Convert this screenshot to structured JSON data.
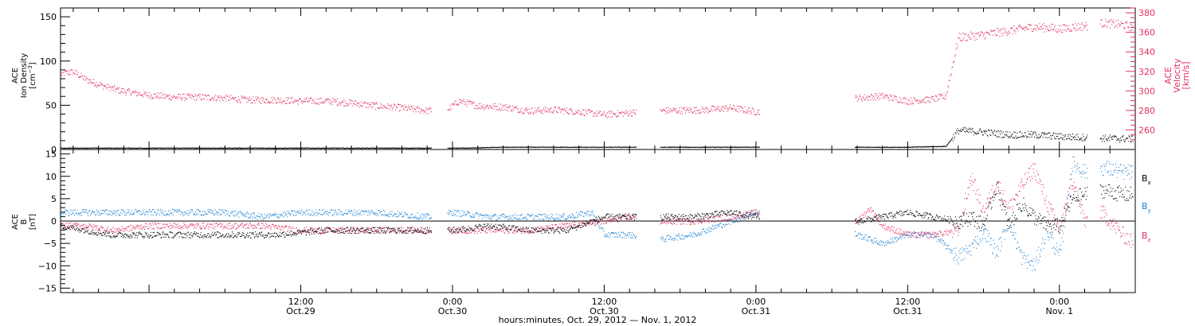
{
  "colors": {
    "density": "#000000",
    "velocity": "#e0325f",
    "bx": "#000000",
    "by": "#1f84d6",
    "bz": "#e0325f"
  },
  "xaxis": {
    "title": "hours:minutes, Oct. 29, 2012 — Nov. 1, 2012",
    "range_hours": [
      -7,
      78
    ],
    "ticks": [
      {
        "h": 12,
        "time": "12:00",
        "date": "Oct.29"
      },
      {
        "h": 24,
        "time": "0:00",
        "date": "Oct.30"
      },
      {
        "h": 36,
        "time": "12:00",
        "date": "Oct.30"
      },
      {
        "h": 48,
        "time": "0:00",
        "date": "Oct.31"
      },
      {
        "h": 60,
        "time": "12:00",
        "date": "Oct.31"
      },
      {
        "h": 72,
        "time": "0:00",
        "date": "Nov. 1"
      }
    ]
  },
  "chart_data": [
    {
      "type": "scatter",
      "title": "",
      "left_axis": {
        "label_lines": [
          "ACE",
          "Ion Density"
        ],
        "unit_base": "[cm",
        "unit_exp": "−3",
        "unit_close": "]",
        "ylim": [
          0,
          160
        ],
        "ticks": [
          "0",
          "50",
          "100",
          "150"
        ],
        "tick_values": [
          0,
          50,
          100,
          150
        ]
      },
      "right_axis": {
        "label_lines": [
          "ACE",
          "Velocity",
          "[km/s]"
        ],
        "ylim": [
          240,
          385
        ],
        "ticks": [
          "260",
          "280",
          "300",
          "320",
          "340",
          "360",
          "380"
        ],
        "tick_values": [
          260,
          280,
          300,
          320,
          340,
          360,
          380
        ]
      },
      "series": [
        {
          "name": "Ion Density",
          "axis": "left",
          "x_hours": [
            -7,
            -3,
            0,
            4,
            8,
            12,
            16,
            20,
            22.5,
            25,
            28,
            32,
            36,
            38,
            40.5,
            44,
            47.5,
            52,
            56,
            60,
            63,
            64,
            66,
            68,
            70,
            72,
            74,
            76,
            78
          ],
          "values": [
            2,
            2,
            2,
            2,
            2,
            2,
            2,
            2,
            2,
            2,
            3,
            3,
            3,
            3,
            3,
            3,
            3,
            3,
            3,
            3,
            4,
            22,
            20,
            17,
            17,
            15,
            14,
            13,
            12
          ],
          "gaps_hours": [
            [
              22.3,
              23.6
            ],
            [
              38.5,
              40.4
            ],
            [
              48.3,
              55.8
            ],
            [
              74.2,
              75.2
            ],
            [
              77.8,
              78
            ]
          ]
        },
        {
          "name": "Velocity",
          "axis": "right",
          "x_hours": [
            -7,
            -6,
            -5,
            -4,
            -3,
            -2,
            0,
            2,
            4,
            6,
            8,
            10,
            12,
            14,
            16,
            18,
            20,
            22,
            23.7,
            24.5,
            26,
            28,
            30,
            32,
            34,
            36,
            38,
            40.5,
            44,
            46,
            48,
            56,
            58,
            60,
            62,
            63,
            64,
            66,
            68,
            70,
            72,
            74,
            75.5,
            77,
            78
          ],
          "values": [
            318,
            320,
            312,
            307,
            303,
            300,
            296,
            294,
            294,
            293,
            291,
            291,
            290,
            290,
            288,
            285,
            283,
            280,
            282,
            290,
            285,
            284,
            280,
            281,
            279,
            276,
            278,
            280,
            281,
            283,
            279,
            293,
            295,
            290,
            292,
            295,
            355,
            358,
            362,
            366,
            364,
            367,
            370,
            368,
            365
          ],
          "gaps_hours": [
            [
              22.3,
              23.6
            ],
            [
              38.5,
              40.4
            ],
            [
              48.3,
              55.8
            ],
            [
              74.2,
              75.2
            ],
            [
              77.8,
              78
            ]
          ]
        }
      ]
    },
    {
      "type": "scatter",
      "title": "",
      "left_axis": {
        "label_lines": [
          "ACE",
          "B",
          "[nT]"
        ],
        "ylim": [
          -16,
          16
        ],
        "ticks": [
          "−15",
          "−10",
          "−5",
          "0",
          "5",
          "10",
          "15"
        ],
        "tick_values": [
          -15,
          -10,
          -5,
          0,
          5,
          10,
          15
        ]
      },
      "legend": {
        "placement": "right",
        "entries": [
          {
            "base": "B",
            "sub": "x"
          },
          {
            "base": "B",
            "sub": "y"
          },
          {
            "base": "B",
            "sub": "z"
          }
        ]
      },
      "series": [
        {
          "name": "Bx",
          "x_hours": [
            -7,
            -5,
            -3,
            0,
            3,
            6,
            10,
            14,
            18,
            22,
            24,
            27,
            30,
            33,
            36,
            38,
            40.5,
            43,
            46,
            48,
            56,
            58,
            60,
            62,
            64,
            65,
            66,
            67,
            68,
            69,
            70,
            71,
            72,
            73,
            74,
            75.5,
            77,
            78
          ],
          "values": [
            -1,
            -2,
            -3,
            -3,
            -3,
            -3,
            -3,
            -2,
            -2,
            -2,
            -2,
            -1,
            -2,
            -2,
            1,
            1,
            1,
            1,
            2,
            1,
            0,
            1,
            2,
            1,
            0,
            1,
            -1,
            8,
            -1,
            4,
            1,
            -1,
            -1,
            5,
            6,
            7,
            6,
            6
          ],
          "gaps_hours": [
            [
              22.3,
              23.6
            ],
            [
              38.5,
              40.4
            ],
            [
              48.3,
              55.8
            ],
            [
              74.2,
              75.2
            ],
            [
              77.8,
              78
            ]
          ]
        },
        {
          "name": "By",
          "x_hours": [
            -7,
            -5,
            -3,
            0,
            3,
            6,
            9,
            12,
            15,
            18,
            22,
            24,
            27,
            30,
            33,
            35,
            36,
            38,
            40.5,
            43,
            46,
            48,
            56,
            58,
            60,
            62,
            64,
            65,
            66,
            67,
            68,
            69,
            70,
            71,
            72,
            73,
            74,
            75.5,
            77,
            78
          ],
          "values": [
            2,
            2,
            2,
            2,
            2,
            2,
            1,
            2,
            2,
            2,
            1,
            2,
            1,
            1,
            1,
            2,
            -3,
            -3,
            -4,
            -3,
            0,
            2,
            -3,
            -5,
            -3,
            -3,
            -8,
            -6,
            -2,
            -7,
            0,
            -8,
            -10,
            -2,
            -8,
            13,
            11,
            12,
            11,
            11
          ],
          "gaps_hours": [
            [
              22.3,
              23.6
            ],
            [
              38.5,
              40.4
            ],
            [
              48.3,
              55.8
            ],
            [
              74.2,
              75.2
            ],
            [
              77.8,
              78
            ]
          ]
        },
        {
          "name": "Bz",
          "x_hours": [
            -7,
            -5,
            -3,
            0,
            3,
            6,
            9,
            12,
            15,
            18,
            22,
            24,
            27,
            30,
            33,
            36,
            38,
            40.5,
            43,
            46,
            48,
            56,
            57,
            58,
            60,
            62,
            64,
            65,
            66,
            67,
            68,
            69,
            70,
            71,
            72,
            73,
            74,
            75,
            76,
            77,
            78
          ],
          "values": [
            -1,
            -1,
            -2,
            -1,
            -1,
            -1,
            -1,
            -2,
            -2,
            -2,
            -2,
            -2,
            -2,
            -2,
            -1,
            0,
            1,
            0,
            0,
            1,
            2,
            0,
            3,
            -1,
            -3,
            -3,
            -2,
            10,
            2,
            9,
            3,
            8,
            12,
            4,
            -2,
            9,
            0,
            3,
            0,
            -3,
            -5
          ],
          "gaps_hours": [
            [
              22.3,
              23.6
            ],
            [
              38.5,
              40.4
            ],
            [
              48.3,
              55.8
            ],
            [
              74.2,
              75.2
            ],
            [
              77.8,
              78
            ]
          ]
        }
      ]
    }
  ]
}
